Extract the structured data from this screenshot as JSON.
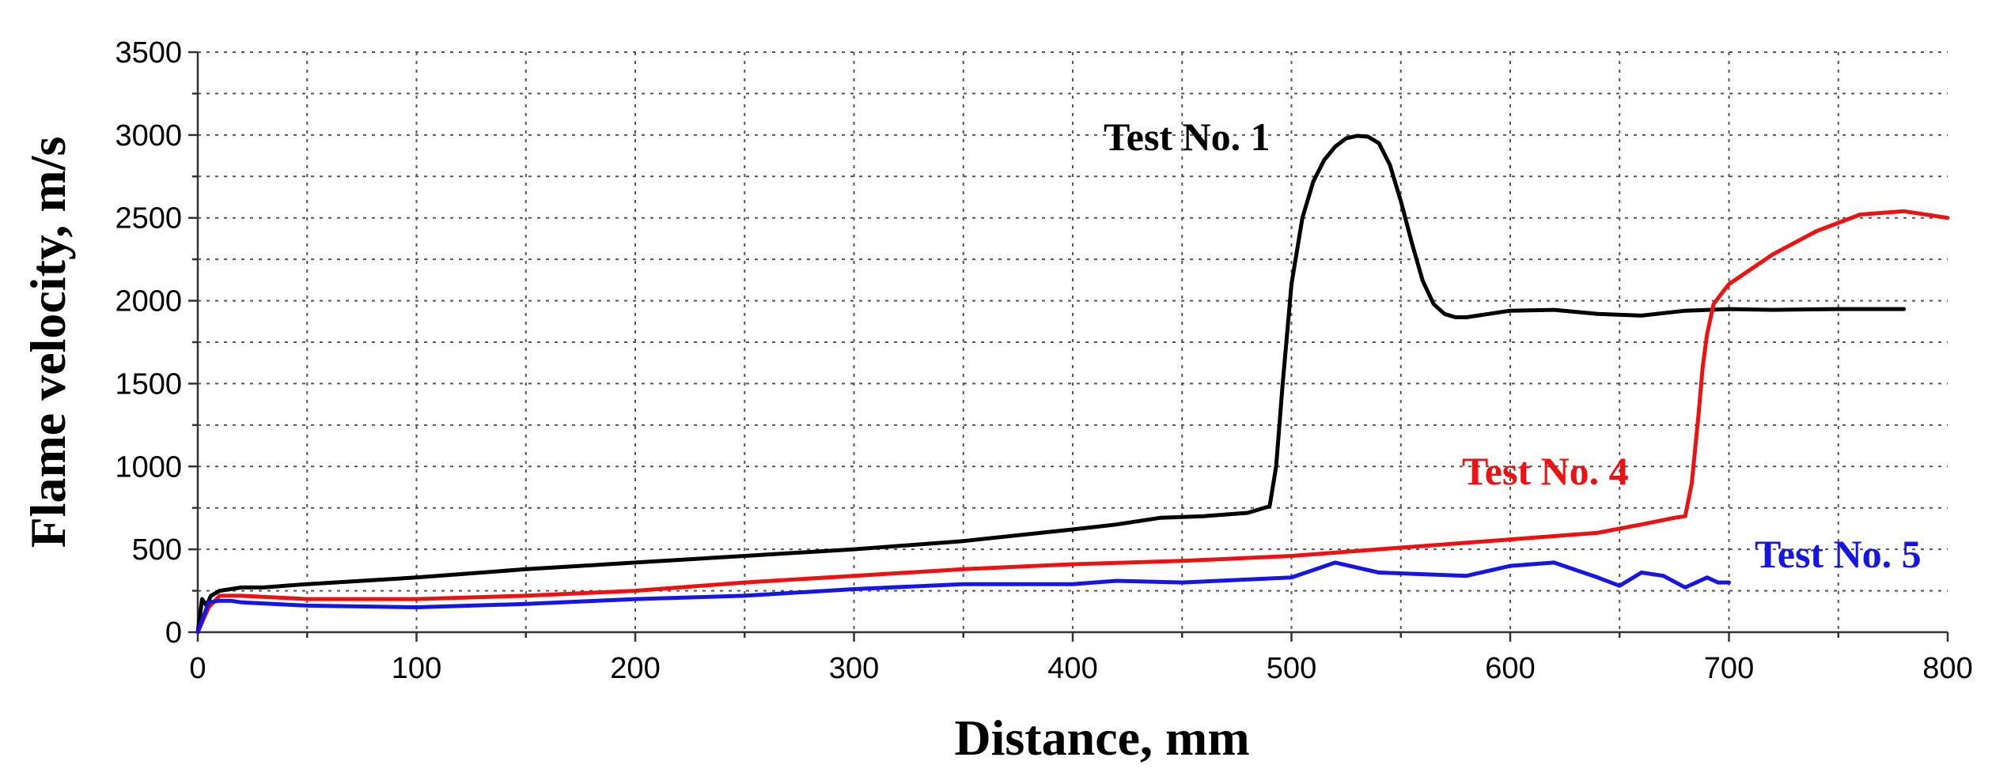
{
  "chart_data": {
    "type": "line",
    "xlabel": "Distance, mm",
    "ylabel": "Flame velocity, m/s",
    "xlim": [
      0,
      800
    ],
    "ylim": [
      0,
      3500
    ],
    "x_ticks": [
      0,
      100,
      200,
      300,
      400,
      500,
      600,
      700,
      800
    ],
    "y_ticks": [
      0,
      500,
      1000,
      1500,
      2000,
      2500,
      3000,
      3500
    ],
    "grid": true,
    "series": [
      {
        "name": "Test No. 1",
        "color": "#000000",
        "x": [
          0,
          2,
          4,
          6,
          10,
          15,
          20,
          30,
          50,
          100,
          150,
          200,
          250,
          300,
          350,
          400,
          420,
          440,
          460,
          480,
          490,
          493,
          496,
          500,
          505,
          510,
          515,
          520,
          525,
          530,
          535,
          540,
          545,
          550,
          555,
          560,
          565,
          570,
          575,
          580,
          590,
          600,
          620,
          640,
          660,
          680,
          700,
          720,
          750,
          780
        ],
        "y": [
          0,
          200,
          160,
          220,
          250,
          260,
          270,
          270,
          290,
          330,
          380,
          420,
          460,
          500,
          550,
          620,
          650,
          690,
          700,
          720,
          760,
          1000,
          1500,
          2100,
          2500,
          2720,
          2850,
          2930,
          2980,
          2995,
          2990,
          2950,
          2820,
          2600,
          2350,
          2120,
          1980,
          1920,
          1900,
          1900,
          1920,
          1940,
          1945,
          1920,
          1910,
          1940,
          1950,
          1945,
          1950,
          1950
        ]
      },
      {
        "name": "Test No. 4",
        "color": "#ee1111",
        "x": [
          0,
          5,
          10,
          20,
          50,
          100,
          150,
          200,
          250,
          300,
          350,
          400,
          450,
          500,
          550,
          600,
          640,
          660,
          675,
          680,
          683,
          686,
          688,
          690,
          693,
          697,
          700,
          720,
          740,
          760,
          780,
          800
        ],
        "y": [
          0,
          150,
          220,
          220,
          200,
          200,
          220,
          250,
          300,
          340,
          380,
          410,
          430,
          460,
          510,
          560,
          600,
          650,
          690,
          700,
          900,
          1300,
          1600,
          1800,
          1980,
          2050,
          2100,
          2280,
          2420,
          2520,
          2540,
          2500
        ]
      },
      {
        "name": "Test No. 5",
        "color": "#1515e6",
        "x": [
          0,
          5,
          10,
          15,
          20,
          50,
          100,
          150,
          200,
          250,
          300,
          350,
          400,
          420,
          450,
          500,
          520,
          540,
          560,
          580,
          600,
          620,
          640,
          650,
          660,
          670,
          680,
          690,
          695,
          700
        ],
        "y": [
          0,
          180,
          190,
          190,
          180,
          160,
          150,
          170,
          200,
          220,
          260,
          290,
          290,
          310,
          300,
          330,
          420,
          360,
          350,
          340,
          400,
          420,
          330,
          280,
          360,
          340,
          270,
          330,
          300,
          300
        ]
      }
    ],
    "annotations": [
      {
        "text": "Test No. 1",
        "color": "#000000"
      },
      {
        "text": "Test No. 4",
        "color": "#ee1111"
      },
      {
        "text": "Test No. 5",
        "color": "#1515e6"
      }
    ]
  }
}
